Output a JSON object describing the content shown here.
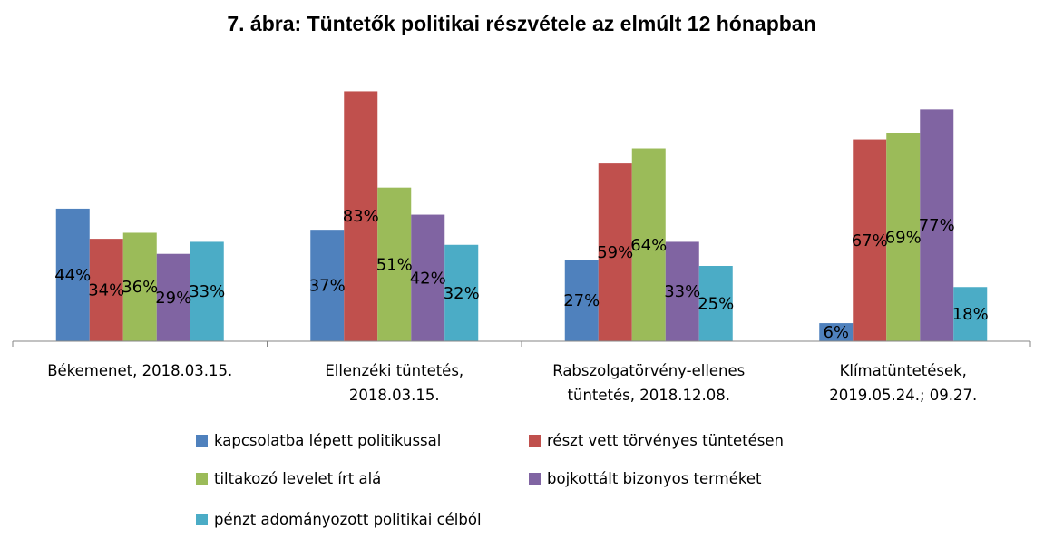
{
  "chart_data": {
    "type": "bar",
    "title": "7. ábra: Tüntetők politikai részvétele az elmúlt 12 hónapban",
    "categories": [
      [
        "Békemenet, 2018.03.15."
      ],
      [
        "Ellenzéki tüntetés,",
        "2018.03.15."
      ],
      [
        "Rabszolgatörvény-ellenes",
        "tüntetés, 2018.12.08."
      ],
      [
        "Klímatüntetések,",
        "2019.05.24.; 09.27."
      ]
    ],
    "series": [
      {
        "name": "kapcsolatba lépett politikussal",
        "color": "#4f81bd",
        "values": [
          44,
          37,
          27,
          6
        ],
        "labels": [
          "44%",
          "37%",
          "27%",
          "6%"
        ]
      },
      {
        "name": "részt vett törvényes tüntetésen",
        "color": "#c0504d",
        "values": [
          34,
          83,
          59,
          67
        ],
        "labels": [
          "34%",
          "83%",
          "59%",
          "67%"
        ]
      },
      {
        "name": "tiltakozó levelet írt alá",
        "color": "#9bbb59",
        "values": [
          36,
          51,
          64,
          69
        ],
        "labels": [
          "36%",
          "51%",
          "64%",
          "69%"
        ]
      },
      {
        "name": "bojkottált bizonyos terméket",
        "color": "#8064a2",
        "values": [
          29,
          42,
          33,
          77
        ],
        "labels": [
          "29%",
          "42%",
          "33%",
          "77%"
        ]
      },
      {
        "name": "pénzt adományozott politikai célból",
        "color": "#4bacc6",
        "values": [
          33,
          32,
          25,
          18
        ],
        "labels": [
          "33%",
          "32%",
          "25%",
          "18%"
        ]
      }
    ],
    "ylim": [
      0,
      100
    ],
    "grid": false,
    "legend_position": "bottom"
  }
}
